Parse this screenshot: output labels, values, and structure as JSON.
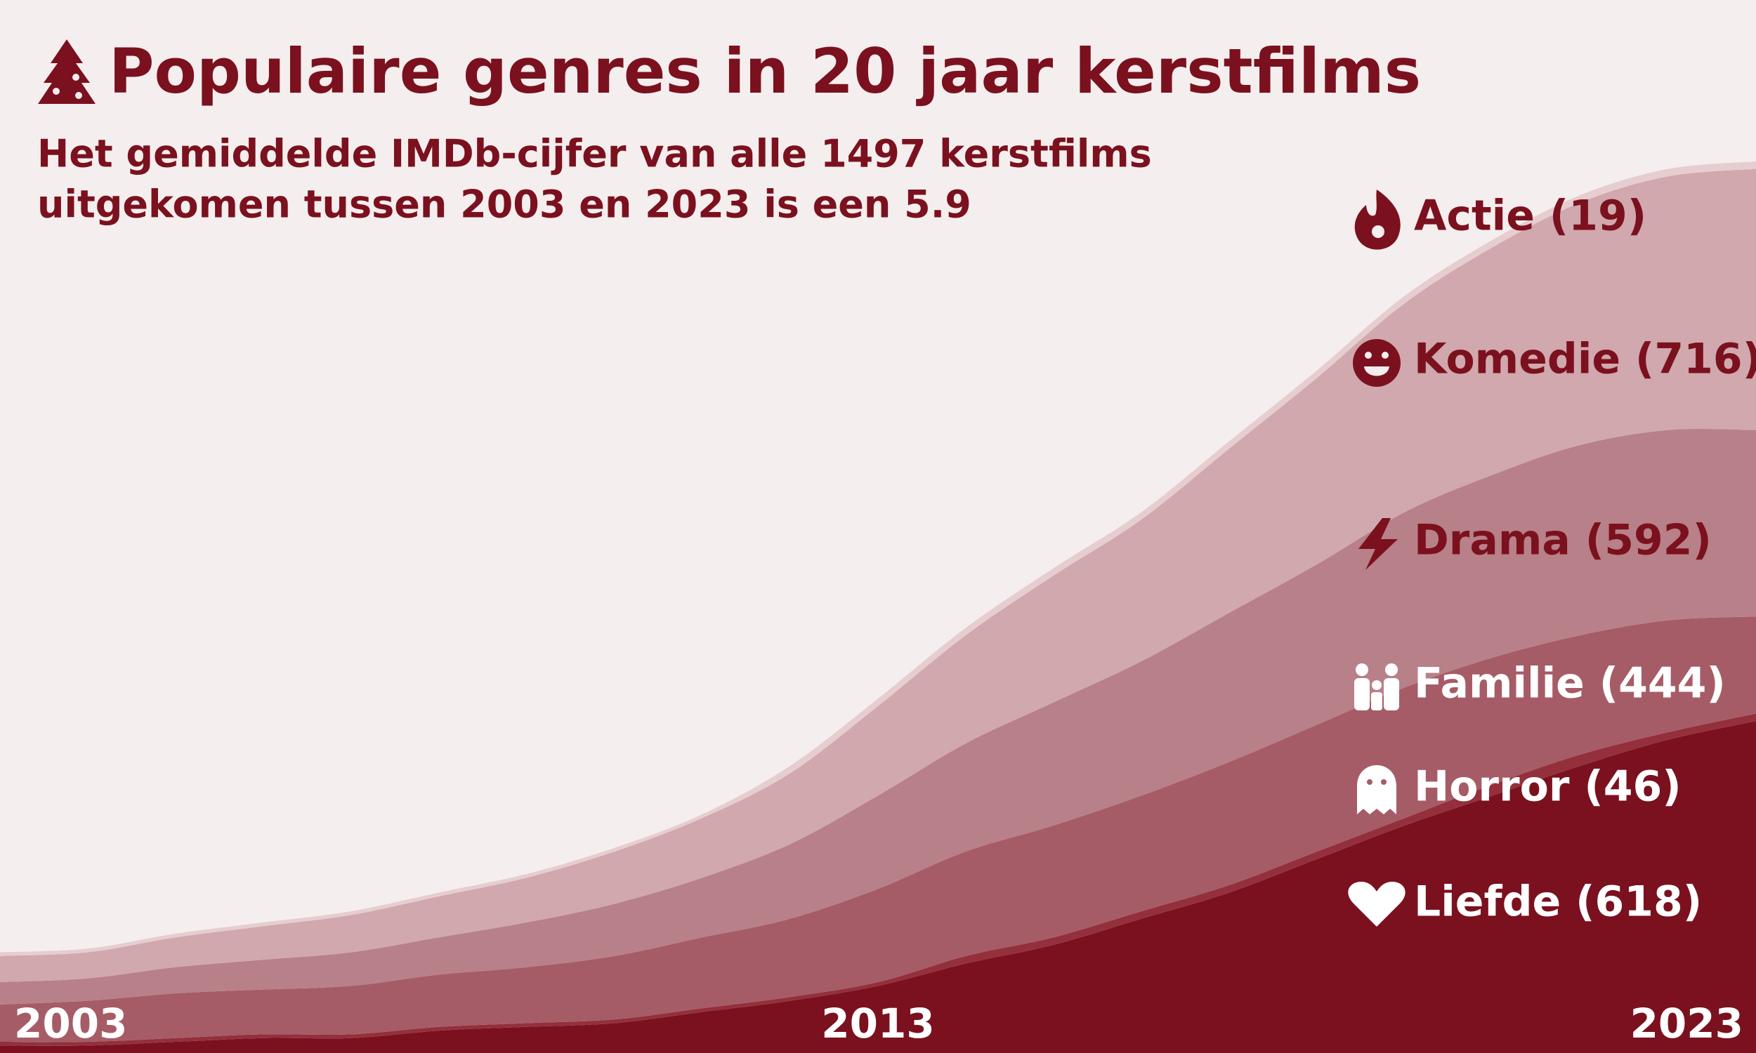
{
  "chart_data": {
    "type": "stacked_area",
    "title": "Populaire genres in 20 jaar kerstfilms",
    "subtitle": [
      "Het gemiddelde IMDb-cijfer van alle 1497 kerstfilms",
      "uitgekomen tussen 2003 en 2023 is een 5.9"
    ],
    "x": [
      2003,
      2004,
      2005,
      2006,
      2007,
      2008,
      2009,
      2010,
      2011,
      2012,
      2013,
      2014,
      2015,
      2016,
      2017,
      2018,
      2019,
      2020,
      2021,
      2022,
      2023
    ],
    "xlim": [
      2003,
      2023
    ],
    "xticks": [
      2003,
      2013,
      2023
    ],
    "series": [
      {
        "name": "Actie (19)",
        "color": "#e6cdd0",
        "label_color": "#7b111e",
        "values": [
          1,
          1,
          1,
          1,
          1,
          1,
          1,
          1,
          1,
          2,
          2,
          2,
          2,
          2,
          2,
          2,
          2,
          2,
          2,
          2,
          2
        ]
      },
      {
        "name": "Komedie (716)",
        "color": "#d0a8ad",
        "label_color": "#7b111e",
        "values": [
          7,
          7,
          8,
          9,
          10,
          11,
          12,
          14,
          16,
          19,
          24,
          29,
          34,
          38,
          44,
          50,
          56,
          61,
          65,
          68,
          70
        ]
      },
      {
        "name": "Drama (592)",
        "color": "#b88088",
        "label_color": "#7b111e",
        "values": [
          6,
          6,
          7,
          8,
          9,
          10,
          12,
          14,
          16,
          20,
          25,
          29,
          33,
          36,
          40,
          43,
          47,
          49,
          51,
          51,
          50
        ]
      },
      {
        "name": "Familie (444)",
        "color": "#a65c66",
        "label_color": "#ffffff",
        "values": [
          10,
          11,
          12,
          12,
          13,
          14,
          15,
          17,
          19,
          21,
          25,
          28,
          30,
          31,
          33,
          34,
          35,
          34,
          32,
          30,
          26
        ]
      },
      {
        "name": "Horror (46)",
        "color": "#93303c",
        "label_color": "#ffffff",
        "values": [
          1,
          1,
          1,
          1,
          1,
          1,
          1,
          1,
          1,
          1,
          1,
          2,
          2,
          2,
          2,
          2,
          2,
          3,
          3,
          2,
          2
        ]
      },
      {
        "name": "Liefde (618)",
        "color": "#7b111e",
        "label_color": "#ffffff",
        "values": [
          2,
          2,
          3,
          4,
          4,
          6,
          7,
          8,
          11,
          14,
          18,
          24,
          29,
          36,
          43,
          52,
          61,
          69,
          77,
          84,
          89
        ]
      }
    ]
  }
}
